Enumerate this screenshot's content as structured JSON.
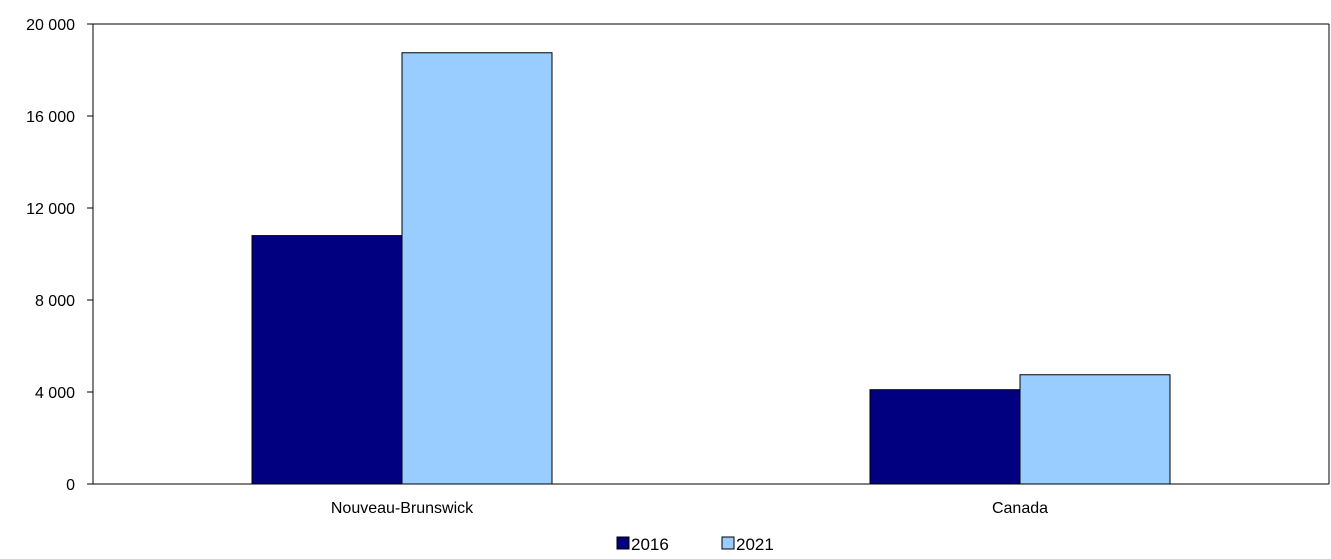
{
  "chart_data": {
    "type": "bar",
    "categories": [
      "Nouveau-Brunswick",
      "Canada"
    ],
    "series": [
      {
        "name": "2016",
        "values": [
          10800,
          4100
        ],
        "color": "#000080"
      },
      {
        "name": "2021",
        "values": [
          18750,
          4750
        ],
        "color": "#99ccff"
      }
    ],
    "ylim": [
      0,
      20000
    ],
    "yticks": [
      0,
      4000,
      8000,
      12000,
      16000,
      20000
    ],
    "ytick_labels": [
      "0",
      "4 000",
      "8 000",
      "12 000",
      "16 000",
      "20 000"
    ],
    "xlabel": "",
    "ylabel": "",
    "grid": false,
    "legend_position": "bottom-center"
  }
}
